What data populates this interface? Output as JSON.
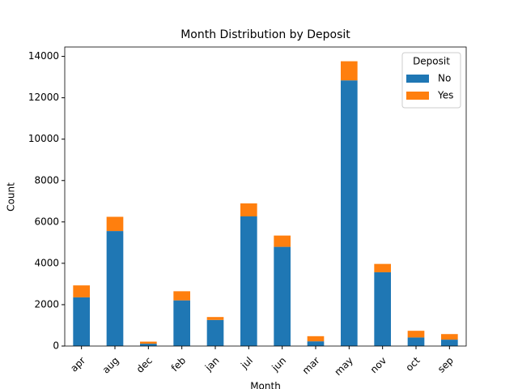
{
  "chart_data": {
    "type": "stacked_bar",
    "title": "Month Distribution by Deposit",
    "x_label": "Month",
    "y_label": "Count",
    "legend_title": "Deposit",
    "legend_position": "upper right",
    "categories": [
      "apr",
      "aug",
      "dec",
      "feb",
      "jan",
      "jul",
      "jun",
      "mar",
      "may",
      "nov",
      "oct",
      "sep"
    ],
    "series": [
      {
        "name": "No",
        "color": "#1f77b4",
        "values": [
          2355,
          5559,
          114,
          2208,
          1261,
          6268,
          4795,
          229,
          12841,
          3567,
          415,
          310
        ]
      },
      {
        "name": "Yes",
        "color": "#ff7f0e",
        "values": [
          577,
          688,
          100,
          441,
          142,
          627,
          546,
          248,
          925,
          403,
          323,
          269
        ]
      }
    ],
    "ylim": [
      0,
      14454
    ],
    "yticks": [
      0,
      2000,
      4000,
      6000,
      8000,
      10000,
      12000,
      14000
    ]
  }
}
